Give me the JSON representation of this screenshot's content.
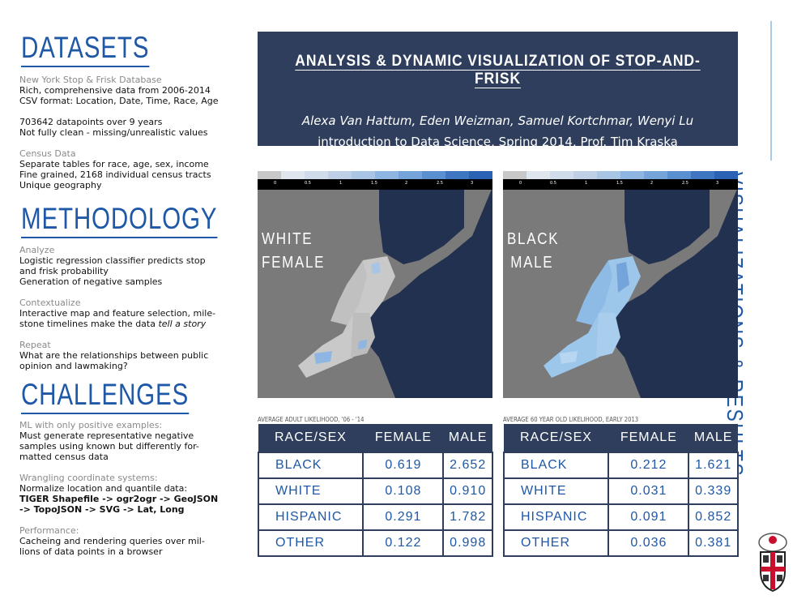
{
  "datasets": {
    "heading": "DATASETS",
    "nyc_sub": "New York Stop & Frisk Database",
    "nyc_lines": [
      "Rich, comprehensive data from 2006-2014",
      "CSV format: Location, Date, Time, Race, Age"
    ],
    "nyc_lines2": [
      "703642 datapoints over 9 years",
      "Not fully clean - missing/unrealistic values"
    ],
    "census_sub": "Census Data",
    "census_lines": [
      "Separate tables for race, age, sex, income",
      "Fine grained, 2168 individual census tracts",
      "Unique geography"
    ]
  },
  "methodology": {
    "heading": "METHODOLOGY",
    "analyze_sub": "Analyze",
    "analyze_lines": [
      "Logistic regression classifier predicts stop",
      "and frisk probability",
      "Generation of negative samples"
    ],
    "contextualize_sub": "Contextualize",
    "contextualize_lines": [
      "Interactive map and feature selection, mile-"
    ],
    "contextualize_last": "stone timelines make the data ",
    "contextualize_italic": "tell a story",
    "repeat_sub": "Repeat",
    "repeat_lines": [
      "What are the relationships between public",
      "opinion and lawmaking?"
    ]
  },
  "challenges": {
    "heading": "CHALLENGES",
    "ml_sub": "ML with only positive examples:",
    "ml_lines": [
      "Must generate representative negative",
      "samples using known but differently for-",
      "matted census data"
    ],
    "coord_sub": "Wrangling coordinate systems:",
    "coord_line": "Normalize location and quantile data:",
    "coord_bold": [
      "TIGER Shapefile -> ogr2ogr -> GeoJSON",
      "-> TopoJSON -> SVG -> Lat, Long"
    ],
    "perf_sub": "Performance:",
    "perf_lines": [
      "Cacheing and rendering queries over mil-",
      "lions of data points in a browser"
    ]
  },
  "title": {
    "main": "ANALYSIS & DYNAMIC VISUALIZATION OF STOP-AND-FRISK",
    "authors": "Alexa Van Hattum, Eden Weizman, Samuel Kortchmar, Wenyi Lu",
    "course": "introduction to Data Science, Spring 2014, Prof. Tim Kraska"
  },
  "side_title": "VISUALIZATIONS & RESULTS",
  "legend": {
    "ticks": [
      "0",
      "0.5",
      "1",
      "1.5",
      "2",
      "2.5",
      "3"
    ],
    "colors": [
      "#c8c8c8",
      "#dfe6ee",
      "#d0dcea",
      "#bfd0e6",
      "#a9c5e6",
      "#8fb6e2",
      "#75a4da",
      "#5a8fd0",
      "#3e76c2",
      "#2a62b4"
    ]
  },
  "map_left": {
    "label_line1": "WHITE",
    "label_line2": "FEMALE"
  },
  "map_right": {
    "label_line1": "BLACK",
    "label_line2": "MALE"
  },
  "colors": {
    "navy": "#2e3e5c",
    "blue": "#1f58a6",
    "land_dark": "#22314f",
    "water": "#7a7a7a"
  },
  "table_left": {
    "caption": "AVERAGE ADULT LIKELIHOOD, '06 - '14",
    "headers": [
      "RACE/SEX",
      "FEMALE",
      "MALE"
    ],
    "rows": [
      [
        "BLACK",
        "0.619",
        "2.652"
      ],
      [
        "WHITE",
        "0.108",
        "0.910"
      ],
      [
        "HISPANIC",
        "0.291",
        "1.782"
      ],
      [
        "OTHER",
        "0.122",
        "0.998"
      ]
    ]
  },
  "table_right": {
    "caption": "AVERAGE 60 YEAR OLD LIKELIHOOD, EARLY 2013",
    "headers": [
      "RACE/SEX",
      "FEMALE",
      "MALE"
    ],
    "rows": [
      [
        "BLACK",
        "0.212",
        "1.621"
      ],
      [
        "WHITE",
        "0.031",
        "0.339"
      ],
      [
        "HISPANIC",
        "0.091",
        "0.852"
      ],
      [
        "OTHER",
        "0.036",
        "0.381"
      ]
    ]
  }
}
